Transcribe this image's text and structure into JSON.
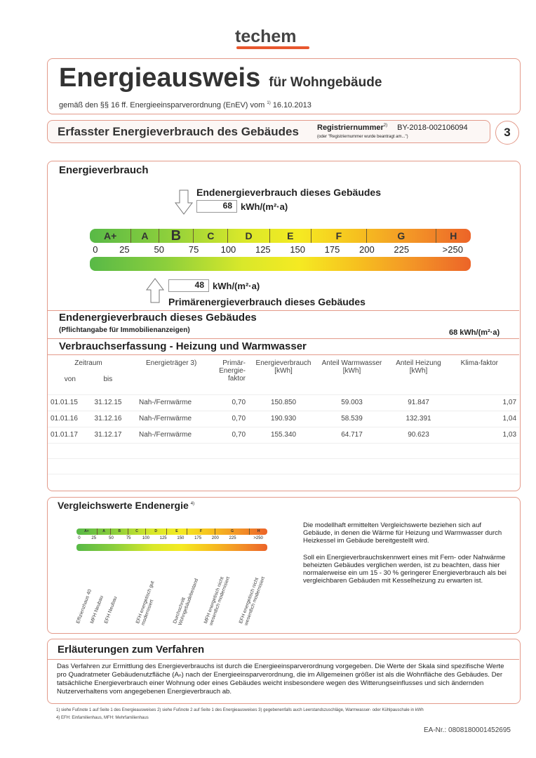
{
  "logo": "techem",
  "header": {
    "title": "Energieausweis",
    "subtitle": "für Wohngebäude",
    "law": "gemäß den §§ 16 ff. Energieeinsparverordnung (EnEV) vom",
    "law_sup": "1)",
    "date": "16.10.2013"
  },
  "section_bar": {
    "title": "Erfasster Energieverbrauch des Gebäudes",
    "reg_label": "Registriernummer",
    "reg_sup": "2)",
    "reg_value": "BY-2018-002106094",
    "reg_note": "(oder \"Registriernummer wurde beantragt am...\")",
    "page": "3"
  },
  "energy": {
    "title": "Energieverbrauch",
    "end_label": "Endenergieverbrauch dieses Gebäudes",
    "end_value": "68",
    "unit": "kWh/(m²·a)",
    "primary_label": "Primärenergieverbrauch dieses Gebäudes",
    "primary_value": "48",
    "classes": [
      "A+",
      "A",
      "B",
      "C",
      "D",
      "E",
      "F",
      "G",
      "H"
    ],
    "ticks": [
      "0",
      "25",
      "50",
      "75",
      "100",
      "125",
      "150",
      "175",
      "200",
      "225",
      ">250"
    ]
  },
  "summary": {
    "title": "Endenergieverbrauch dieses Gebäudes",
    "note": "(Pflichtangabe für Immobilienanzeigen)",
    "value": "68 kWh/(m²·a)"
  },
  "consumption": {
    "title": "Verbrauchserfassung - Heizung und Warmwasser",
    "headers": {
      "period": "Zeitraum",
      "from": "von",
      "to": "bis",
      "carrier": "Energieträger 3)",
      "factor": "Primär-Energie-faktor",
      "energy": "Energieverbrauch [kWh]",
      "ww": "Anteil Warmwasser [kWh]",
      "heat": "Anteil Heizung [kWh]",
      "klima": "Klima-faktor"
    },
    "rows": [
      {
        "from": "01.01.15",
        "to": "31.12.15",
        "carrier": "Nah-/Fernwärme",
        "factor": "0,70",
        "energy": "150.850",
        "ww": "59.003",
        "heat": "91.847",
        "klima": "1,07"
      },
      {
        "from": "01.01.16",
        "to": "31.12.16",
        "carrier": "Nah-/Fernwärme",
        "factor": "0,70",
        "energy": "190.930",
        "ww": "58.539",
        "heat": "132.391",
        "klima": "1,04"
      },
      {
        "from": "01.01.17",
        "to": "31.12.17",
        "carrier": "Nah-/Fernwärme",
        "factor": "0,70",
        "energy": "155.340",
        "ww": "64.717",
        "heat": "90.623",
        "klima": "1,03"
      }
    ]
  },
  "comparison": {
    "title": "Vergleichswerte Endenergie",
    "sup": "4)",
    "labels": [
      "Effizienzhaus 40",
      "MFH Neubau",
      "EFH Neubau",
      "EFH energetisch gut modernisiert",
      "Durchschnitt Wohngebäudebestand",
      "MFH energetisch nicht wesentlich modernisiert",
      "EFH energetisch nicht wesentlich modernisiert"
    ],
    "text1": "Die modellhaft ermittelten Vergleichswerte beziehen sich auf Gebäude, in denen die Wärme für Heizung und Warmwasser durch Heizkessel im Gebäude bereitgestellt wird.",
    "text2": "Soll ein Energieverbrauchskennwert eines mit Fern- oder Nahwärme beheizten Gebäudes verglichen werden, ist zu beachten, dass hier normalerweise ein um 15 - 30 % geringerer Energieverbrauch als bei vergleichbaren Gebäuden mit Kesselheizung zu erwarten ist."
  },
  "explanation": {
    "title": "Erläuterungen zum Verfahren",
    "text": "Das Verfahren zur Ermittlung des Energieverbrauchs ist durch die Energieeinsparverordnung vorgegeben. Die Werte der Skala sind spezifische Werte pro Quadratmeter Gebäudenutzfläche (Aₙ) nach der Energieeinsparverordnung, die im Allgemeinen größer ist als die Wohnfläche des Gebäudes. Der tatsächliche Energieverbrauch einer Wohnung oder eines Gebäudes weicht insbesondere wegen des Witterungseinflusses und sich ändernden Nutzerverhaltens vom angegebenen Energieverbrauch ab."
  },
  "footnotes": {
    "line1": "1) siehe Fußnote 1 auf Seite 1 des Energieausweises  2) siehe Fußnote 2 auf Seite 1 des Energieausweises  3) gegebenenfalls auch Leerstandszuschläge, Warmwasser- oder Kühlpauschale in kWh",
    "line2": "4) EFH: Einfamilienhaus, MFH: Mehrfamilienhaus"
  },
  "ea_nr": "EA-Nr.: 0808180001452695"
}
